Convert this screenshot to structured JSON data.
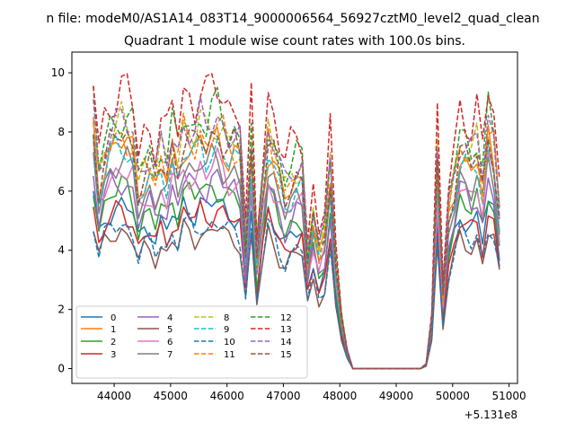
{
  "figure": {
    "suptitle": "n file: modeM0/AS1A14_083T14_9000006564_56927cztM0_level2_quad_clean"
  },
  "chart_data": {
    "type": "line",
    "title": "Quadrant 1 module wise count rates with 100.0s bins.",
    "xlabel": "",
    "ylabel": "",
    "x_offset_label": "+5.131e8",
    "xlim": [
      43250,
      51150
    ],
    "ylim": [
      -0.5,
      10.7
    ],
    "xticks": [
      44000,
      45000,
      46000,
      47000,
      48000,
      49000,
      50000,
      51000
    ],
    "yticks": [
      0,
      2,
      4,
      6,
      8,
      10
    ],
    "grid": false,
    "legend": {
      "placement": "lower-left",
      "columns": 4
    },
    "x": [
      43630,
      43730,
      43830,
      43930,
      44030,
      44130,
      44230,
      44330,
      44430,
      44530,
      44630,
      44730,
      44830,
      44930,
      45030,
      45130,
      45230,
      45330,
      45430,
      45530,
      45630,
      45730,
      45830,
      45930,
      46030,
      46130,
      46230,
      46330,
      46430,
      46530,
      46630,
      46730,
      46830,
      46930,
      47030,
      47130,
      47230,
      47330,
      47430,
      47530,
      47630,
      47730,
      47830,
      47930,
      48030,
      48130,
      48230,
      48330,
      48430,
      48530,
      48630,
      48730,
      48830,
      48930,
      49030,
      49130,
      49230,
      49330,
      49430,
      49530,
      49630,
      49730,
      49830,
      49930,
      50030,
      50130,
      50230,
      50330,
      50430,
      50530,
      50630,
      50730,
      50830
    ],
    "base_profile": [
      5.5,
      4.2,
      4.8,
      5.1,
      5.2,
      5.3,
      5.2,
      5.0,
      4.1,
      4.5,
      4.6,
      4.2,
      4.7,
      4.4,
      5.0,
      4.6,
      5.3,
      5.2,
      5.0,
      5.3,
      5.1,
      5.3,
      5.4,
      5.2,
      5.0,
      5.0,
      4.8,
      2.7,
      5.0,
      2.5,
      4.0,
      5.2,
      4.8,
      4.3,
      3.9,
      4.2,
      4.4,
      4.4,
      2.5,
      3.4,
      2.6,
      3.0,
      4.5,
      2.3,
      1.1,
      0.4,
      0.0,
      0.0,
      0.0,
      0.0,
      0.0,
      0.0,
      0.0,
      0.0,
      0.0,
      0.0,
      0.0,
      0.0,
      0.0,
      0.1,
      1.1,
      4.7,
      1.6,
      3.5,
      4.2,
      5.0,
      4.8,
      4.6,
      4.9,
      4.1,
      5.3,
      4.9,
      3.5
    ],
    "series": [
      {
        "name": "0",
        "color": "#1f77b4",
        "dash": "solid",
        "scale": 1.05
      },
      {
        "name": "1",
        "color": "#ff7f0e",
        "dash": "solid",
        "scale": 1.45
      },
      {
        "name": "2",
        "color": "#2ca02c",
        "dash": "solid",
        "scale": 1.15
      },
      {
        "name": "3",
        "color": "#d62728",
        "dash": "solid",
        "scale": 1.0
      },
      {
        "name": "4",
        "color": "#9467bd",
        "dash": "solid",
        "scale": 1.2
      },
      {
        "name": "5",
        "color": "#8c564b",
        "dash": "solid",
        "scale": 0.88
      },
      {
        "name": "6",
        "color": "#e377c2",
        "dash": "solid",
        "scale": 1.28
      },
      {
        "name": "7",
        "color": "#7f7f7f",
        "dash": "solid",
        "scale": 1.32
      },
      {
        "name": "8",
        "color": "#bcbd22",
        "dash": "dashed",
        "scale": 1.55
      },
      {
        "name": "9",
        "color": "#17becf",
        "dash": "dashed",
        "scale": 1.4
      },
      {
        "name": "10",
        "color": "#1f77b4",
        "dash": "dashed",
        "scale": 0.92
      },
      {
        "name": "11",
        "color": "#ff7f0e",
        "dash": "dashed",
        "scale": 1.5
      },
      {
        "name": "12",
        "color": "#2ca02c",
        "dash": "dashed",
        "scale": 1.62
      },
      {
        "name": "13",
        "color": "#d62728",
        "dash": "dashed",
        "scale": 1.78
      },
      {
        "name": "14",
        "color": "#9467bd",
        "dash": "dashed",
        "scale": 1.58
      },
      {
        "name": "15",
        "color": "#8c564b",
        "dash": "dashed",
        "scale": 1.48
      }
    ]
  }
}
